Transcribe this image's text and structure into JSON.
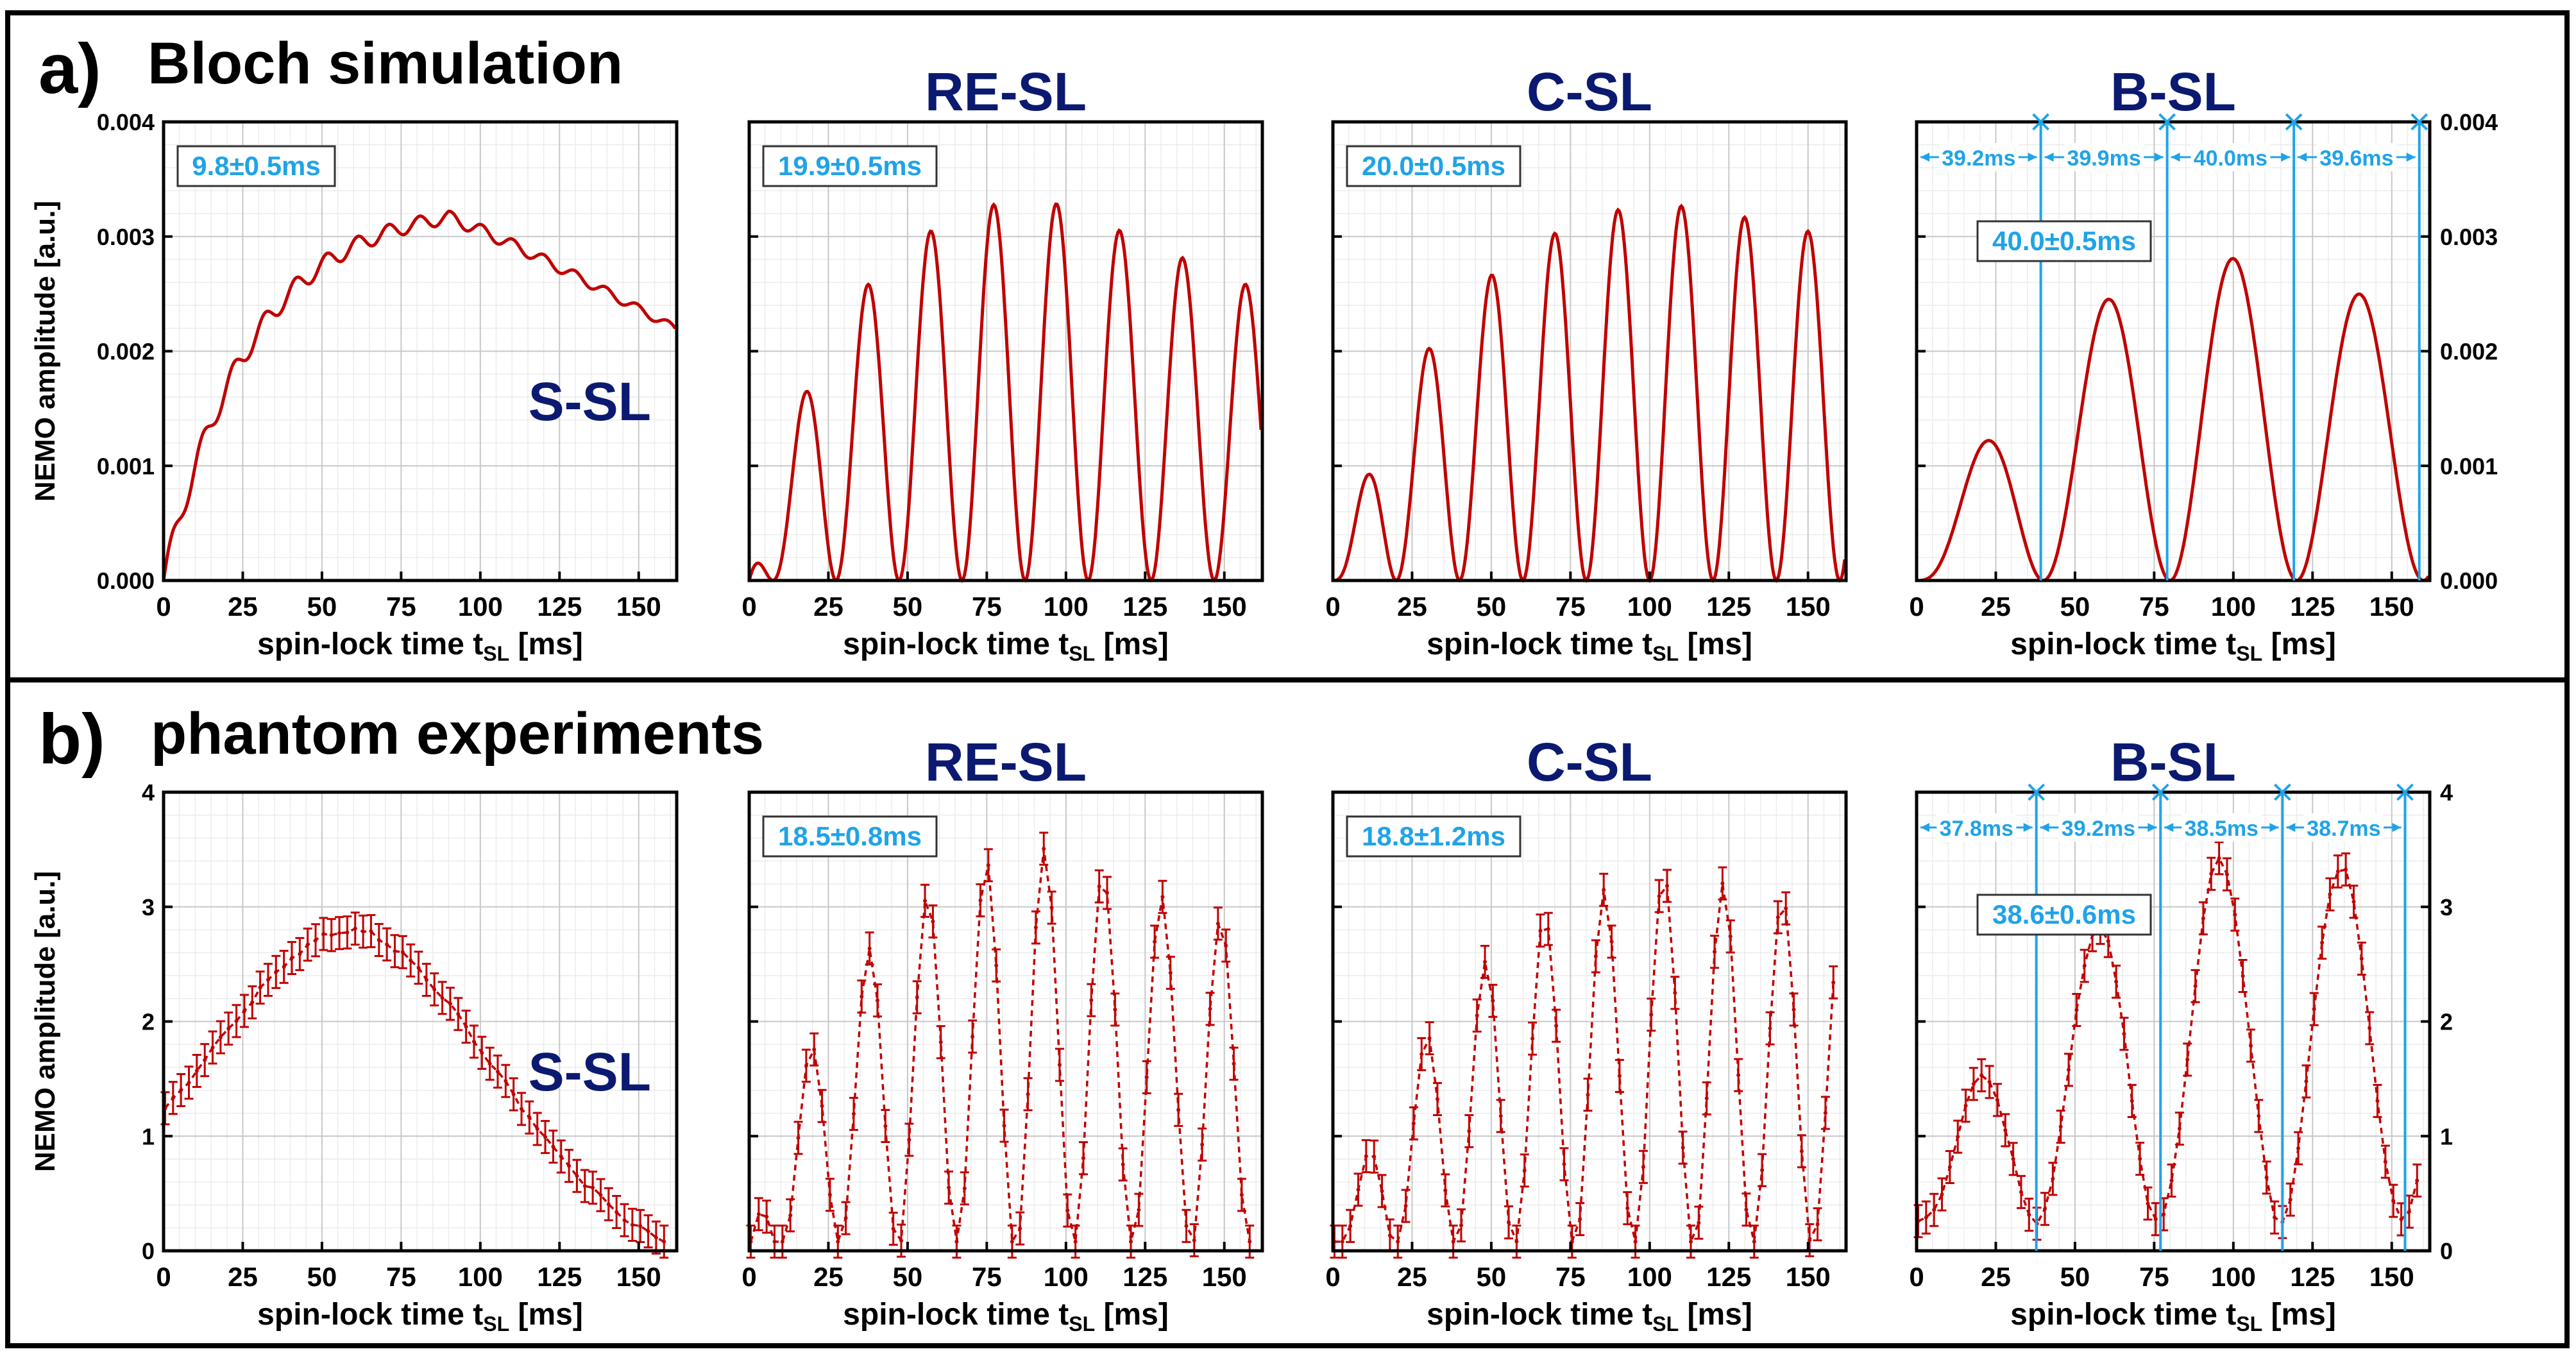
{
  "figure": {
    "colors": {
      "curve": "#c00000",
      "title": "#0b1a70",
      "annotation": "#1fa3e8",
      "frame": "#000000",
      "grid": "#c8c8c8",
      "minor_grid": "#ececec"
    },
    "sections": [
      {
        "label": "a)",
        "title": "Bloch simulation"
      },
      {
        "label": "b)",
        "title": "phantom experiments"
      }
    ]
  },
  "chart_data": [
    {
      "type": "line",
      "row": 0,
      "method": "S-SL",
      "title": "",
      "title_inside": "S-SL",
      "xlabel": "spin-lock time t",
      "xlabel_sub": "SL",
      "xlabel_unit": " [ms]",
      "ylabel": "NEMO amplitude [a.u.]",
      "xlim": [
        0,
        162
      ],
      "xticks": [
        0,
        25,
        50,
        75,
        100,
        125,
        150
      ],
      "ylim": [
        0,
        0.004
      ],
      "yticks": [
        "0.000",
        "0.001",
        "0.002",
        "0.003",
        "0.004"
      ],
      "box_label": "9.8±0.5ms",
      "model": {
        "kind": "ssl",
        "period": 9.8,
        "amp": 0.0033,
        "tau": 28,
        "decay": 0.0011,
        "wiggle": 0.00011
      }
    },
    {
      "type": "line",
      "row": 0,
      "method": "RE-SL",
      "title": "RE-SL",
      "xlabel": "spin-lock time t",
      "xlabel_sub": "SL",
      "xlabel_unit": " [ms]",
      "xlim": [
        0,
        162
      ],
      "xticks": [
        0,
        25,
        50,
        75,
        100,
        125,
        150
      ],
      "ylim": [
        0,
        0.004
      ],
      "yticks": [
        "0.000",
        "0.001",
        "0.002",
        "0.003",
        "0.004"
      ],
      "box_label": "19.9±0.5ms",
      "model": {
        "kind": "osc",
        "period": 19.9,
        "phase": 7.5,
        "amp": 0.0035,
        "rise": 28,
        "peak": 90,
        "fall": 0.0045
      }
    },
    {
      "type": "line",
      "row": 0,
      "method": "C-SL",
      "title": "C-SL",
      "xlabel": "spin-lock time t",
      "xlabel_sub": "SL",
      "xlabel_unit": " [ms]",
      "xlim": [
        0,
        162
      ],
      "xticks": [
        0,
        25,
        50,
        75,
        100,
        125,
        150
      ],
      "ylim": [
        0,
        0.004
      ],
      "yticks": [
        "0.000",
        "0.001",
        "0.002",
        "0.003",
        "0.004"
      ],
      "box_label": "20.0±0.5ms",
      "model": {
        "kind": "osc",
        "period": 20.0,
        "phase": 0,
        "amp": 0.0035,
        "rise": 35,
        "peak": 100,
        "fall": 0.0025
      }
    },
    {
      "type": "line",
      "row": 0,
      "method": "B-SL",
      "title": "B-SL",
      "xlabel": "spin-lock time t",
      "xlabel_sub": "SL",
      "xlabel_unit": " [ms]",
      "xlim": [
        0,
        162
      ],
      "xticks": [
        0,
        25,
        50,
        75,
        100,
        125,
        150
      ],
      "ylim": [
        0,
        0.004
      ],
      "yticks": [
        "0.000",
        "0.001",
        "0.002",
        "0.003",
        "0.004"
      ],
      "right_axis": true,
      "box_label": "40.0±0.5ms",
      "peaks": [
        39.2,
        79.1,
        119.1,
        158.7
      ],
      "intervals": [
        "39.2ms",
        "39.9ms",
        "40.0ms",
        "39.6ms"
      ],
      "model": {
        "kind": "osc",
        "period": 40.0,
        "phase": 0,
        "amp": 0.0035,
        "rise": 50,
        "peak": 85,
        "fall": 0.005
      }
    },
    {
      "type": "line",
      "row": 1,
      "method": "S-SL",
      "title": "",
      "title_inside": "S-SL",
      "xlabel": "spin-lock time t",
      "xlabel_sub": "SL",
      "xlabel_unit": " [ms]",
      "ylabel": "NEMO amplitude [a.u.]",
      "xlim": [
        0,
        162
      ],
      "xticks": [
        0,
        25,
        50,
        75,
        100,
        125,
        150
      ],
      "ylim": [
        0,
        4
      ],
      "yticks": [
        "0",
        "1",
        "2",
        "3",
        "4"
      ],
      "markers": true,
      "model": {
        "kind": "ssl_exp",
        "center": 60,
        "width": 62,
        "amp": 2.6,
        "base": 0.2
      }
    },
    {
      "type": "line",
      "row": 1,
      "method": "RE-SL",
      "title": "RE-SL",
      "xlabel": "spin-lock time t",
      "xlabel_sub": "SL",
      "xlabel_unit": " [ms]",
      "xlim": [
        0,
        162
      ],
      "xticks": [
        0,
        25,
        50,
        75,
        100,
        125,
        150
      ],
      "ylim": [
        0,
        4
      ],
      "yticks": [
        "0",
        "1",
        "2",
        "3",
        "4"
      ],
      "markers": true,
      "box_label": "18.5±0.8ms",
      "model": {
        "kind": "osc",
        "period": 18.5,
        "phase": 10,
        "amp": 3.7,
        "rise": 30,
        "peak": 90,
        "fall": 0.004
      }
    },
    {
      "type": "line",
      "row": 1,
      "method": "C-SL",
      "title": "C-SL",
      "xlabel": "spin-lock time t",
      "xlabel_sub": "SL",
      "xlabel_unit": " [ms]",
      "xlim": [
        0,
        162
      ],
      "xticks": [
        0,
        25,
        50,
        75,
        100,
        125,
        150
      ],
      "ylim": [
        0,
        4
      ],
      "yticks": [
        "0",
        "1",
        "2",
        "3",
        "4"
      ],
      "markers": true,
      "box_label": "18.8±1.2ms",
      "model": {
        "kind": "osc",
        "period": 18.8,
        "phase": 1,
        "amp": 3.6,
        "rise": 40,
        "peak": 100,
        "fall": 0.003
      }
    },
    {
      "type": "line",
      "row": 1,
      "method": "B-SL",
      "title": "B-SL",
      "xlabel": "spin-lock time t",
      "xlabel_sub": "SL",
      "xlabel_unit": " [ms]",
      "xlim": [
        0,
        162
      ],
      "xticks": [
        0,
        25,
        50,
        75,
        100,
        125,
        150
      ],
      "ylim": [
        0,
        4
      ],
      "yticks": [
        "0",
        "1",
        "2",
        "3",
        "4"
      ],
      "right_axis": true,
      "markers": true,
      "box_label": "38.6±0.6ms",
      "peaks": [
        37.8,
        77.0,
        115.5,
        154.2
      ],
      "intervals": [
        "37.8ms",
        "39.2ms",
        "38.5ms",
        "38.7ms"
      ],
      "model": {
        "kind": "osc",
        "period": 38.6,
        "phase": -1,
        "amp": 3.6,
        "rise": 45,
        "peak": 110,
        "fall": 0.004,
        "base": 0.25
      }
    }
  ]
}
